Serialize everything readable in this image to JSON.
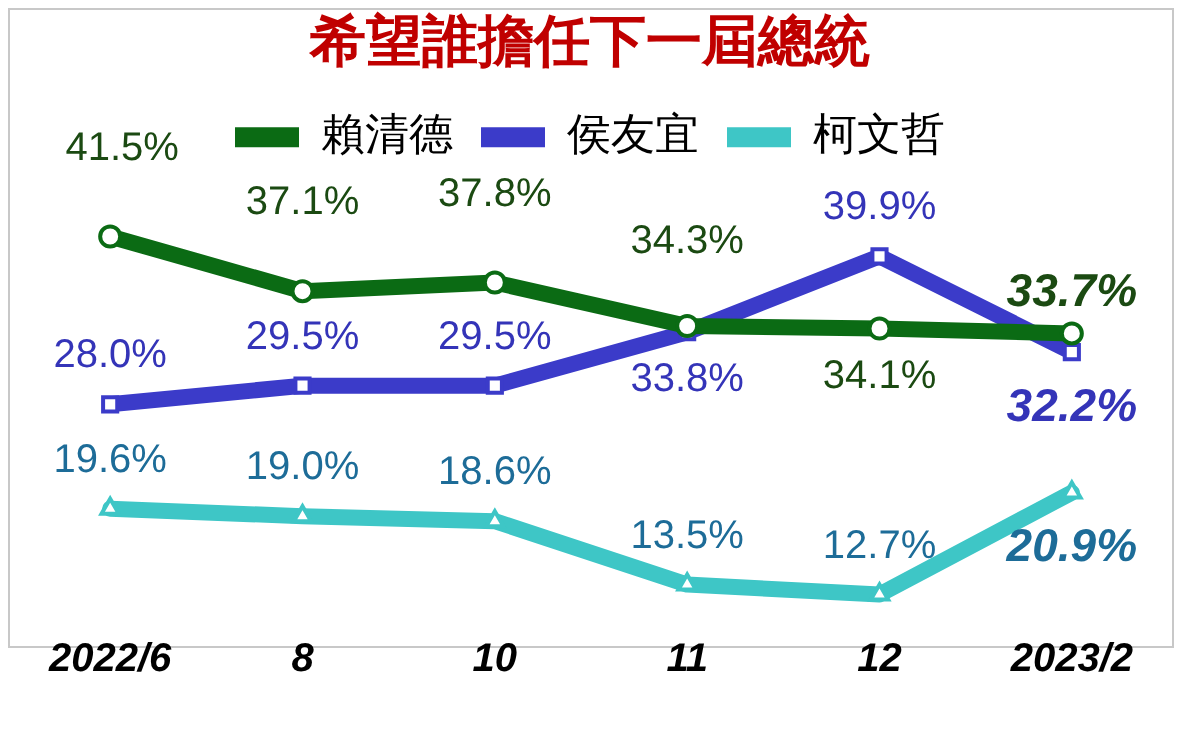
{
  "chart_data": {
    "type": "line",
    "title": "希望誰擔任下一屆總統",
    "categories": [
      "2022/6",
      "8",
      "10",
      "11",
      "12",
      "2023/2"
    ],
    "legend": "top",
    "series": [
      {
        "name": "賴清德",
        "color": "#0b6b14",
        "marker": "circle",
        "values": [
          41.5,
          37.1,
          37.8,
          34.3,
          34.1,
          33.7
        ],
        "value_labels": [
          "41.5%",
          "37.1%",
          "37.8%",
          "34.3%",
          "34.1%",
          "33.7%"
        ]
      },
      {
        "name": "侯友宜",
        "color": "#3b3bc9",
        "marker": "square",
        "values": [
          28.0,
          29.5,
          29.5,
          33.8,
          39.9,
          32.2
        ],
        "value_labels": [
          "28.0%",
          "29.5%",
          "29.5%",
          "33.8%",
          "39.9%",
          "32.2%"
        ]
      },
      {
        "name": "柯文哲",
        "color": "#3ec6c6",
        "marker": "triangle",
        "values": [
          19.6,
          19.0,
          18.6,
          13.5,
          12.7,
          20.9
        ],
        "value_labels": [
          "19.6%",
          "19.0%",
          "18.6%",
          "13.5%",
          "12.7%",
          "20.9%"
        ]
      }
    ]
  }
}
